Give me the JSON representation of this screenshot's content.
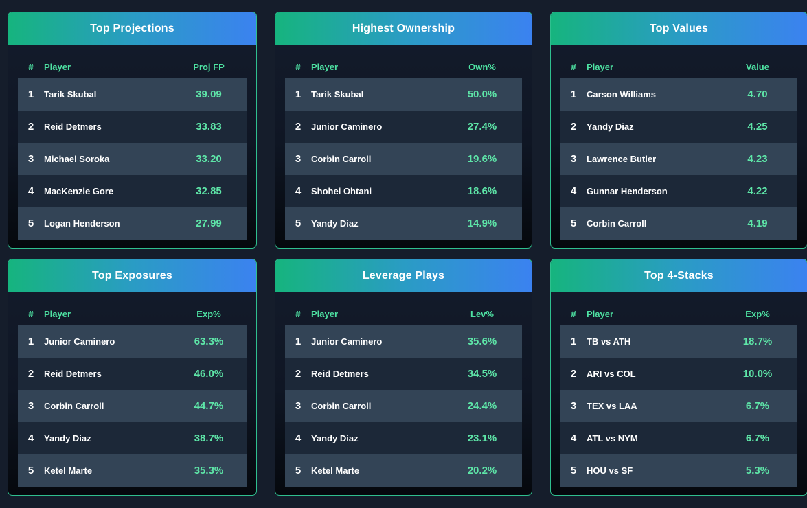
{
  "cards": [
    {
      "title": "Top Projections",
      "headers": {
        "rank": "#",
        "player": "Player",
        "value": "Proj FP"
      },
      "rows": [
        {
          "rank": "1",
          "player": "Tarik Skubal",
          "value": "39.09"
        },
        {
          "rank": "2",
          "player": "Reid Detmers",
          "value": "33.83"
        },
        {
          "rank": "3",
          "player": "Michael Soroka",
          "value": "33.20"
        },
        {
          "rank": "4",
          "player": "MacKenzie Gore",
          "value": "32.85"
        },
        {
          "rank": "5",
          "player": "Logan Henderson",
          "value": "27.99"
        }
      ]
    },
    {
      "title": "Highest Ownership",
      "headers": {
        "rank": "#",
        "player": "Player",
        "value": "Own%"
      },
      "rows": [
        {
          "rank": "1",
          "player": "Tarik Skubal",
          "value": "50.0%"
        },
        {
          "rank": "2",
          "player": "Junior Caminero",
          "value": "27.4%"
        },
        {
          "rank": "3",
          "player": "Corbin Carroll",
          "value": "19.6%"
        },
        {
          "rank": "4",
          "player": "Shohei Ohtani",
          "value": "18.6%"
        },
        {
          "rank": "5",
          "player": "Yandy Diaz",
          "value": "14.9%"
        }
      ]
    },
    {
      "title": "Top Values",
      "headers": {
        "rank": "#",
        "player": "Player",
        "value": "Value"
      },
      "rows": [
        {
          "rank": "1",
          "player": "Carson Williams",
          "value": "4.70"
        },
        {
          "rank": "2",
          "player": "Yandy Diaz",
          "value": "4.25"
        },
        {
          "rank": "3",
          "player": "Lawrence Butler",
          "value": "4.23"
        },
        {
          "rank": "4",
          "player": "Gunnar Henderson",
          "value": "4.22"
        },
        {
          "rank": "5",
          "player": "Corbin Carroll",
          "value": "4.19"
        }
      ]
    },
    {
      "title": "Top Exposures",
      "headers": {
        "rank": "#",
        "player": "Player",
        "value": "Exp%"
      },
      "rows": [
        {
          "rank": "1",
          "player": "Junior Caminero",
          "value": "63.3%"
        },
        {
          "rank": "2",
          "player": "Reid Detmers",
          "value": "46.0%"
        },
        {
          "rank": "3",
          "player": "Corbin Carroll",
          "value": "44.7%"
        },
        {
          "rank": "4",
          "player": "Yandy Diaz",
          "value": "38.7%"
        },
        {
          "rank": "5",
          "player": "Ketel Marte",
          "value": "35.3%"
        }
      ]
    },
    {
      "title": "Leverage Plays",
      "headers": {
        "rank": "#",
        "player": "Player",
        "value": "Lev%"
      },
      "rows": [
        {
          "rank": "1",
          "player": "Junior Caminero",
          "value": "35.6%"
        },
        {
          "rank": "2",
          "player": "Reid Detmers",
          "value": "34.5%"
        },
        {
          "rank": "3",
          "player": "Corbin Carroll",
          "value": "24.4%"
        },
        {
          "rank": "4",
          "player": "Yandy Diaz",
          "value": "23.1%"
        },
        {
          "rank": "5",
          "player": "Ketel Marte",
          "value": "20.2%"
        }
      ]
    },
    {
      "title": "Top 4-Stacks",
      "headers": {
        "rank": "#",
        "player": "Player",
        "value": "Exp%"
      },
      "rows": [
        {
          "rank": "1",
          "player": "TB vs ATH",
          "value": "18.7%"
        },
        {
          "rank": "2",
          "player": "ARI vs COL",
          "value": "10.0%"
        },
        {
          "rank": "3",
          "player": "TEX vs LAA",
          "value": "6.7%"
        },
        {
          "rank": "4",
          "player": "ATL vs NYM",
          "value": "6.7%"
        },
        {
          "rank": "5",
          "player": "HOU vs SF",
          "value": "5.3%"
        }
      ]
    }
  ],
  "colors": {
    "accent_green": "#4ee3a3",
    "header_gradient_start": "#16b47e",
    "header_gradient_end": "#3b82f0",
    "row_light": "#334456",
    "row_dark": "#1c2838"
  }
}
